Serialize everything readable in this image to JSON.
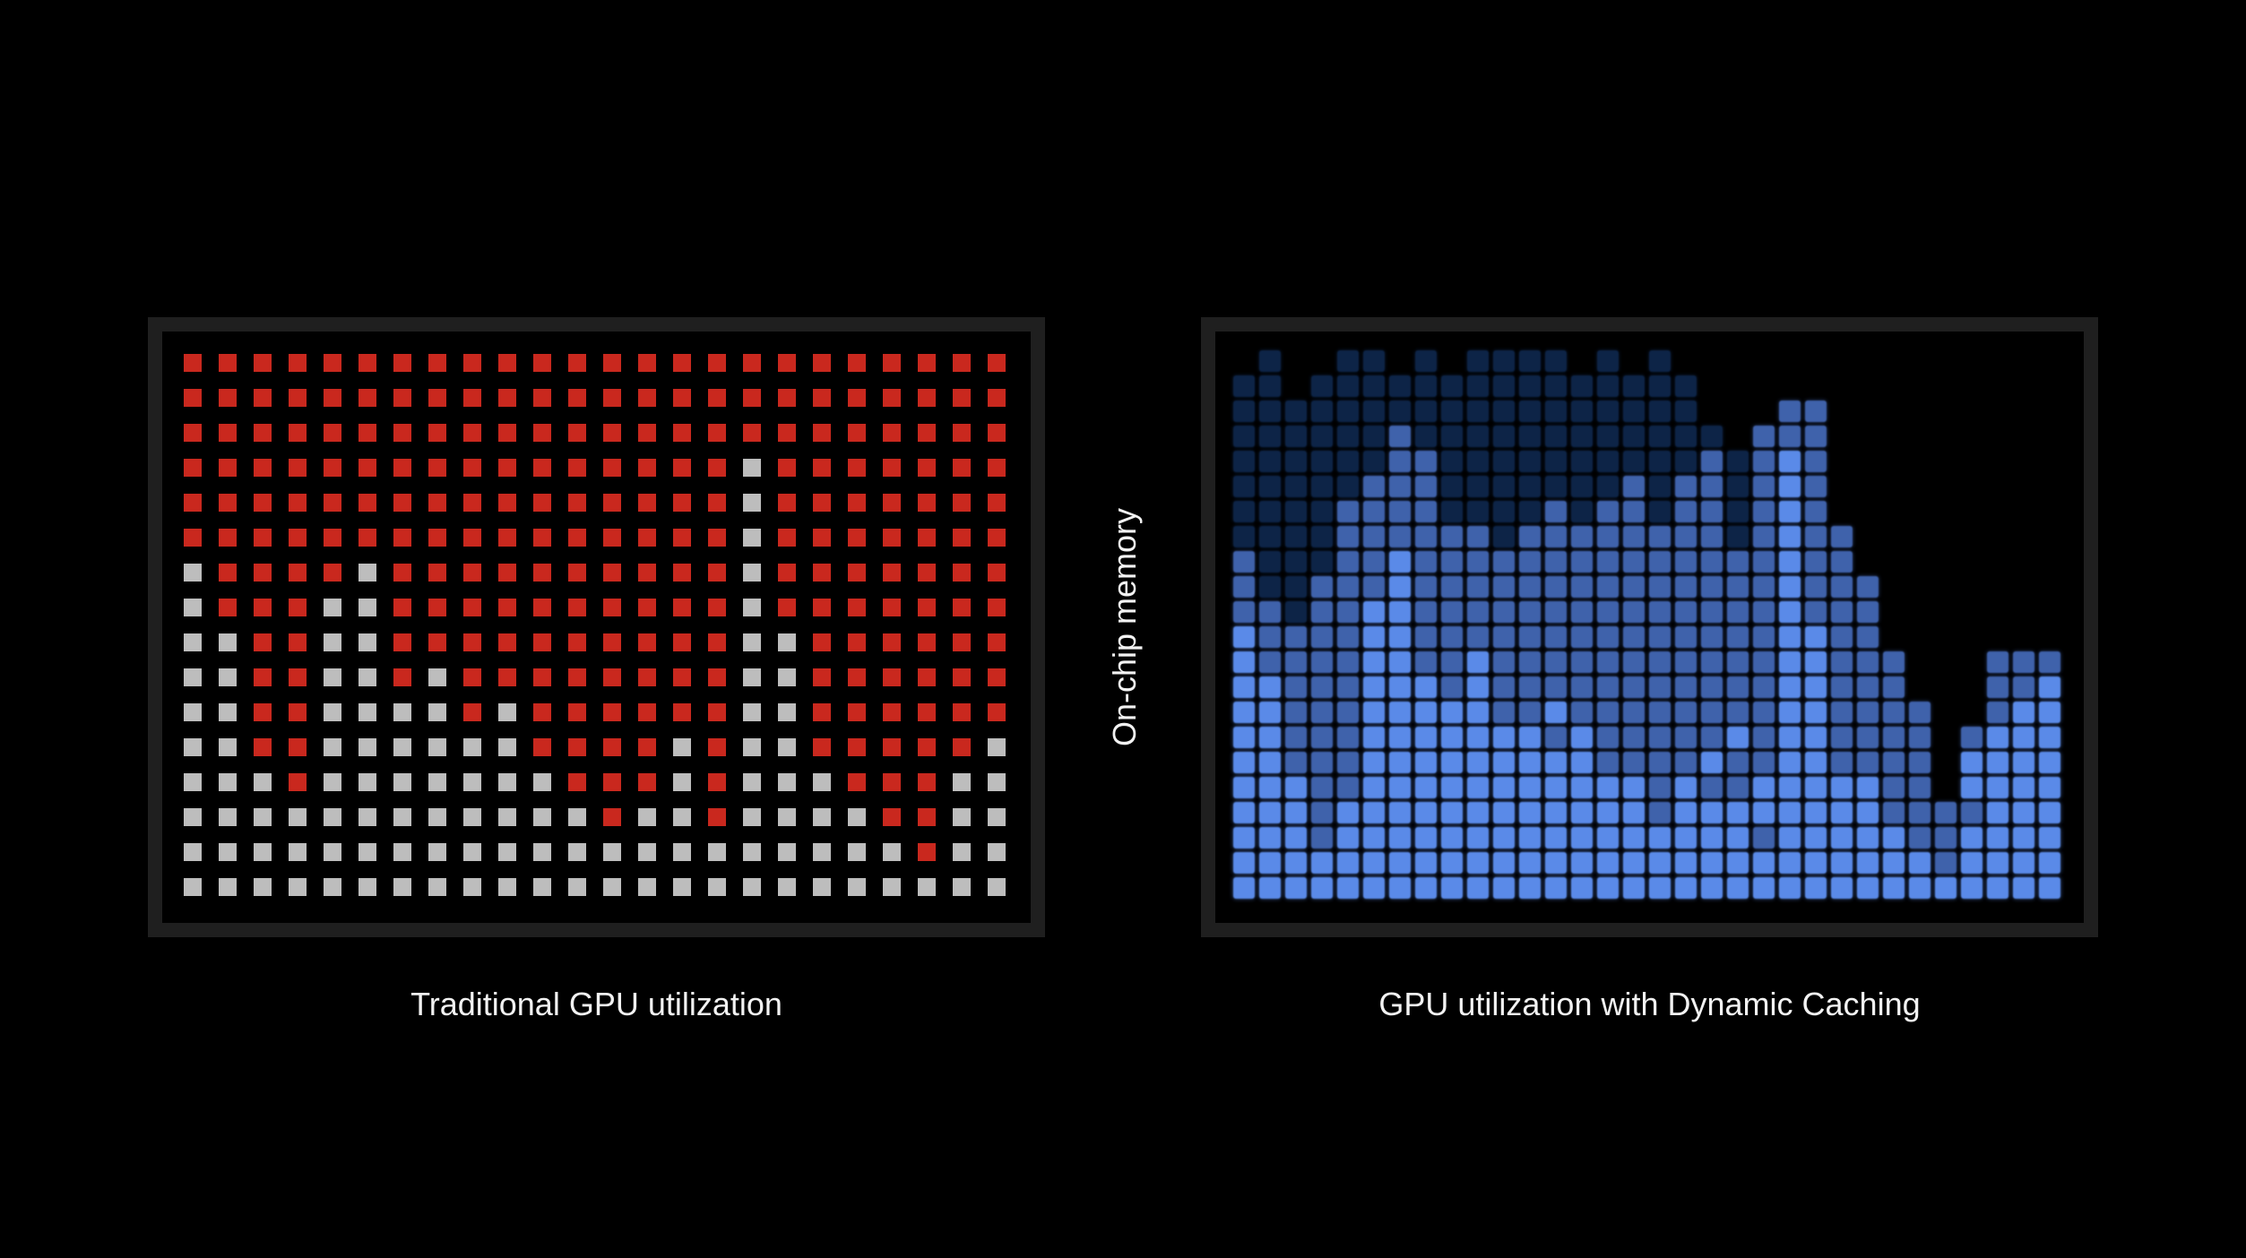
{
  "axis_label": "On-chip memory",
  "left_panel": {
    "caption": "Traditional GPU utilization",
    "legend": {
      "R": "allocated (red)",
      "G": "unused (gray)"
    },
    "colors": {
      "R": "#c9281e",
      "G": "#bdbdbd",
      "frame": "#1f1f1f"
    },
    "rows": [
      "RRRRRRRRRRRRRRRRRRRRRRRR",
      "RRRRRRRRRRRRRRRRRRRRRRRR",
      "RRRRRRRRRRRRRRRRRRRRRRRR",
      "RRRRRRRRRRRRRRRRGRRRRRRR",
      "RRRRRRRRRRRRRRRRGRRRRRRR",
      "RRRRRRRRRRRRRRRRGRRRRRRR",
      "GRRRRGRRRRRRRRRRGRRRRRRR",
      "GRRRGGRRRRRRRRRRGRRRRRRR",
      "GGRRGGRRRRRRRRRRGGRRRRRR",
      "GGRRGGRGRRRRRRRRGGRRRRRR",
      "GGRRGGGGRGRRRRRRGGRRRRRR",
      "GGRRGGGGGGRRRRGRGGRRRRRG",
      "GGGRGGGGGGGRRRGRGGGRRRGG",
      "GGGGGGGGGGGGRGGRGGGGRRGG",
      "GGGGGGGGGGGGGGGGGGGGGRGG",
      "GGGGGGGGGGGGGGGGGGGGGGGG"
    ]
  },
  "right_panel": {
    "caption": "GPU utilization with Dynamic Caching",
    "legend": {
      "0": "empty",
      "1": "dark navy",
      "2": "mid blue",
      "3": "bright blue"
    },
    "colors": {
      "1": "#0d2447",
      "2": "#3f62ab",
      "3": "#5a8ae8",
      "frame": "#1f1f1f"
    },
    "rows": [
      "01001101011110101000000000000000",
      "11011111111111111100000000000000",
      "11111111111111111100022000000000",
      "11111121111111111110222000000000",
      "11111122111111111121232000000000",
      "11111222111111121221232000000000",
      "11112222111121221221232000000000",
      "11112222221222222221232200000000",
      "21112232222222222222232200000000",
      "21122232222222222222232220000000",
      "22122332222222222222232220000000",
      "32222332222222222222233220000000",
      "32222332232222222222233222000222",
      "33222333232222222222233222000223",
      "33222333332232222222233222200233",
      "33222333333323222223233222202333",
      "33222333333333222232233222203333",
      "33322333333333332322333332203333",
      "33323333333333332333333332222333",
      "33323333333333333333233333223333",
      "33333333333333333333333333323333",
      "33333333333333333333333333333333"
    ]
  }
}
